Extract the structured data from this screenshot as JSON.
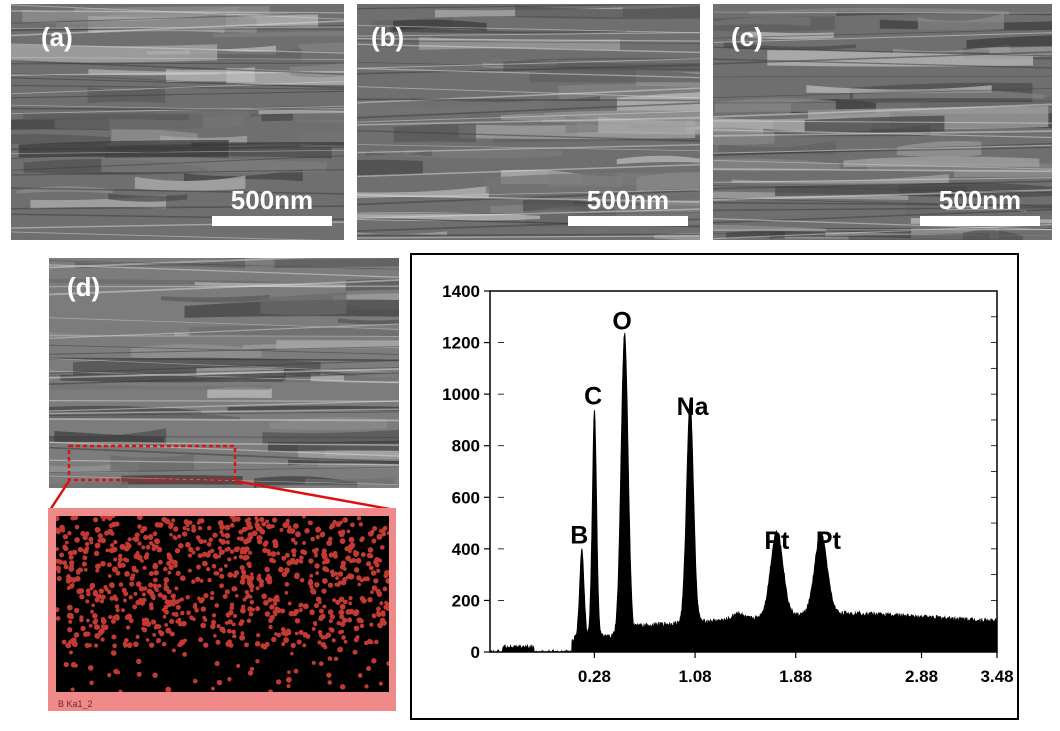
{
  "panels": {
    "a": {
      "label": "(a)",
      "scale": "500nm"
    },
    "b": {
      "label": "(b)",
      "scale": "500nm"
    },
    "c": {
      "label": "(c)",
      "scale": "500nm"
    },
    "d": {
      "label": "(d)"
    }
  },
  "map": {
    "label": "B Ka1_2"
  },
  "colors": {
    "map_points": "#c23a32",
    "map_frame": "#f08a8a",
    "zoom_box": "#e01010",
    "spectrum": "#000000"
  },
  "chart_data": {
    "type": "area",
    "title": "",
    "xlabel": "",
    "ylabel": "",
    "xlim": [
      -0.55,
      3.48
    ],
    "ylim": [
      0,
      1400
    ],
    "xticks": [
      0.28,
      1.08,
      1.88,
      2.88,
      3.48
    ],
    "xtick_labels": [
      "0.28",
      "1.08",
      "1.88",
      "2.88",
      "3.48"
    ],
    "yticks": [
      0,
      200,
      400,
      600,
      800,
      1000,
      1200,
      1400
    ],
    "ytick_labels": [
      "0",
      "200",
      "400",
      "600",
      "800",
      "1000",
      "1200",
      "1400"
    ],
    "peaks": [
      {
        "element": "B",
        "energy": 0.18,
        "counts": 340
      },
      {
        "element": "C",
        "energy": 0.28,
        "counts": 880
      },
      {
        "element": "O",
        "energy": 0.52,
        "counts": 1180
      },
      {
        "element": "Na",
        "energy": 1.04,
        "counts": 860
      },
      {
        "element": "Pt",
        "energy": 1.73,
        "counts": 330
      },
      {
        "element": "Pt",
        "energy": 2.08,
        "counts": 310
      }
    ],
    "annotations": [
      {
        "text": "B",
        "energy": 0.16,
        "counts": 420
      },
      {
        "text": "C",
        "energy": 0.27,
        "counts": 960
      },
      {
        "text": "O",
        "energy": 0.5,
        "counts": 1250
      },
      {
        "text": "Na",
        "energy": 1.06,
        "counts": 920
      },
      {
        "text": "Pt",
        "energy": 1.73,
        "counts": 400
      },
      {
        "text": "Pt",
        "energy": 2.14,
        "counts": 400
      }
    ]
  }
}
